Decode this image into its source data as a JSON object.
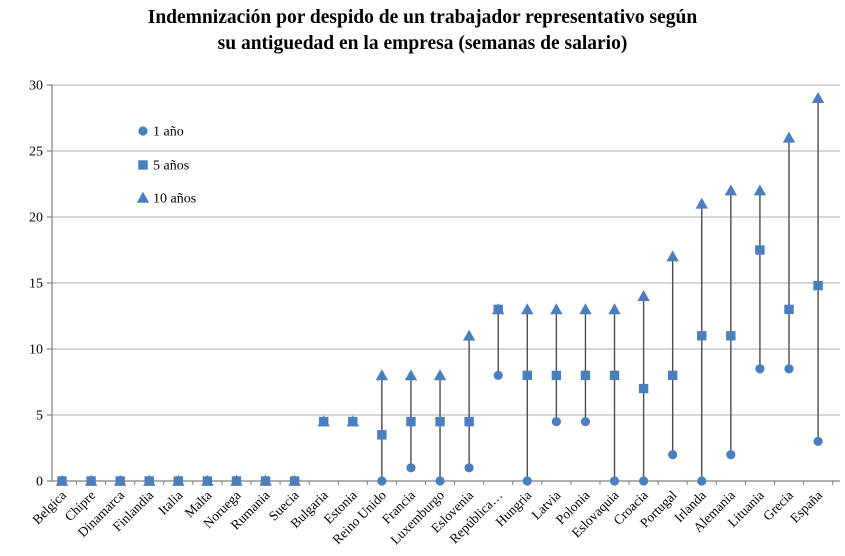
{
  "title": {
    "line1": "Indemnización por despido de un trabajador representativo según",
    "line2": "su antiguedad en la empresa (semanas de salario)"
  },
  "chart_data": {
    "type": "scatter",
    "title": "Indemnización por despido de un trabajador representativo según su antiguedad en la empresa (semanas de salario)",
    "xlabel": "",
    "ylabel": "",
    "ylim": [
      0,
      30
    ],
    "yticks": [
      0,
      5,
      10,
      15,
      20,
      25,
      30
    ],
    "grid": true,
    "legend_position": "top-left-inside",
    "legend": [
      "1 año",
      "5 años",
      "10 años"
    ],
    "categories": [
      "Belgica",
      "Chipre",
      "Dinamarca",
      "Finlandia",
      "Italia",
      "Malta",
      "Noruega",
      "Rumania",
      "Suecia",
      "Bulgaria",
      "Estonia",
      "Reino Unido",
      "Francia",
      "Luxemburgo",
      "Eslovenia",
      "República…",
      "Hungria",
      "Latvia",
      "Polonia",
      "Eslovaquia",
      "Croacia",
      "Portugal",
      "Irlanda",
      "Alemania",
      "Lituania",
      "Grecia",
      "España"
    ],
    "series": [
      {
        "name": "1 año",
        "marker": "circle",
        "values": [
          0,
          0,
          0,
          0,
          0,
          0,
          0,
          0,
          0,
          4.5,
          4.5,
          0,
          1,
          0,
          1,
          8,
          0,
          4.5,
          4.5,
          0,
          0,
          2,
          0,
          2,
          8.5,
          8.5,
          3
        ]
      },
      {
        "name": "5 años",
        "marker": "square",
        "values": [
          0,
          0,
          0,
          0,
          0,
          0,
          0,
          0,
          0,
          4.5,
          4.5,
          3.5,
          4.5,
          4.5,
          4.5,
          13,
          8,
          8,
          8,
          8,
          7,
          8,
          11,
          11,
          17.5,
          13,
          14.8
        ]
      },
      {
        "name": "10 años",
        "marker": "triangle",
        "values": [
          0,
          0,
          0,
          0,
          0,
          0,
          0,
          0,
          0,
          4.5,
          4.5,
          8,
          8,
          8,
          11,
          13,
          13,
          13,
          13,
          13,
          14,
          17,
          21,
          22,
          22,
          26,
          29
        ]
      }
    ],
    "colors": {
      "marker": "#4A7EBD",
      "range_line": "#4D4D4D",
      "gridline": "#ACACAC",
      "axis": "#808080",
      "text": "#000000"
    }
  }
}
